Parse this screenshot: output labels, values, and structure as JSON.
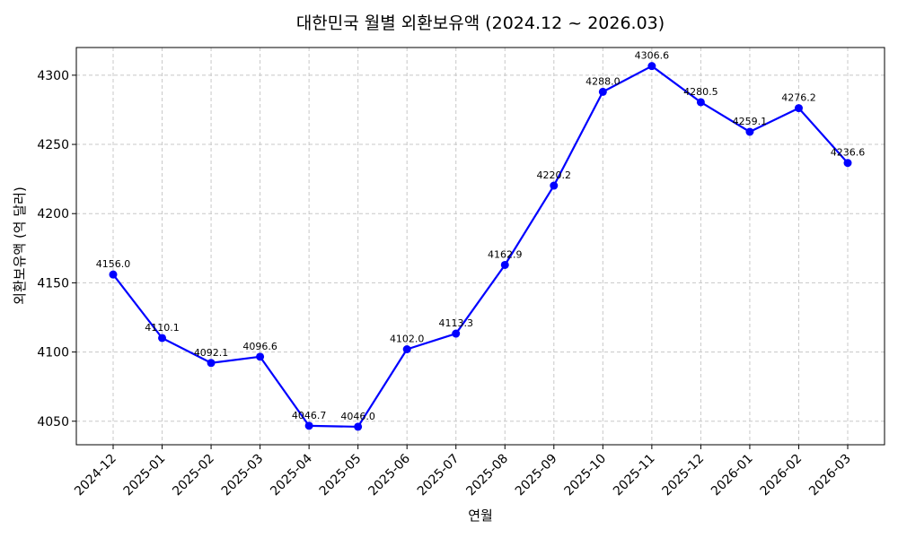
{
  "chart_data": {
    "type": "line",
    "title": "대한민국 월별 외환보유액 (2024.12 ~ 2026.03)",
    "xlabel": "연월",
    "ylabel": "외환보유액 (억 달러)",
    "categories": [
      "2024-12",
      "2025-01",
      "2025-02",
      "2025-03",
      "2025-04",
      "2025-05",
      "2025-06",
      "2025-07",
      "2025-08",
      "2025-09",
      "2025-10",
      "2025-11",
      "2025-12",
      "2026-01",
      "2026-02",
      "2026-03"
    ],
    "values": [
      4156.0,
      4110.1,
      4092.1,
      4096.6,
      4046.7,
      4046.0,
      4102.0,
      4113.3,
      4162.9,
      4220.2,
      4288.0,
      4306.6,
      4280.5,
      4259.1,
      4276.2,
      4236.6
    ],
    "data_labels": [
      "4156.0",
      "4110.1",
      "4092.1",
      "4096.6",
      "4046.7",
      "4046.0",
      "4102.0",
      "4113.3",
      "4162.9",
      "4220.2",
      "4288.0",
      "4306.6",
      "4280.5",
      "4259.1",
      "4276.2",
      "4236.6"
    ],
    "ylim": [
      4033,
      4320
    ],
    "yticks": [
      4050,
      4100,
      4150,
      4200,
      4250,
      4300
    ],
    "ytick_labels": [
      "4050",
      "4100",
      "4150",
      "4200",
      "4250",
      "4300"
    ],
    "grid": true,
    "line_color": "#0000ff",
    "marker_color": "#0000ff"
  }
}
